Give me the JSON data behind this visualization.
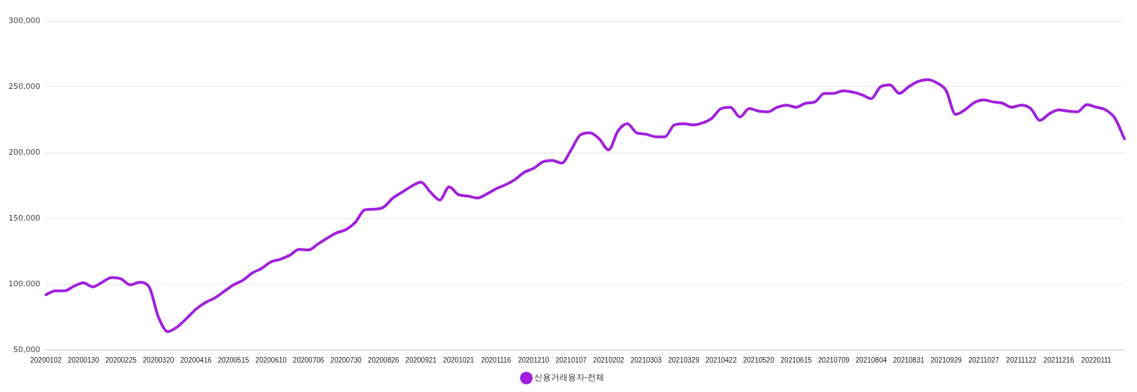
{
  "chart_data": {
    "type": "line",
    "categories": [
      "20200102",
      null,
      null,
      null,
      "20200130",
      null,
      null,
      null,
      "20200225",
      null,
      null,
      null,
      "20200320",
      null,
      null,
      null,
      "20200416",
      null,
      null,
      null,
      "20200515",
      null,
      null,
      null,
      "20200610",
      null,
      null,
      null,
      "20200706",
      null,
      null,
      null,
      "20200730",
      null,
      null,
      null,
      "20200826",
      null,
      null,
      null,
      "20200921",
      null,
      null,
      null,
      "20201021",
      null,
      null,
      null,
      "20201116",
      null,
      null,
      null,
      "20201210",
      null,
      null,
      null,
      "20210107",
      null,
      null,
      null,
      "20210202",
      null,
      null,
      null,
      "20210303",
      null,
      null,
      null,
      "20210329",
      null,
      null,
      null,
      "20210422",
      null,
      null,
      null,
      "20210520",
      null,
      null,
      null,
      "20210615",
      null,
      null,
      null,
      "20210709",
      null,
      null,
      null,
      "20210804",
      null,
      null,
      null,
      "20210831",
      null,
      null,
      null,
      "20210929",
      null,
      null,
      null,
      "20211027",
      null,
      null,
      null,
      "20211122",
      null,
      null,
      null,
      "20211216",
      null,
      null,
      null,
      "20220111",
      null,
      null,
      null
    ],
    "series": [
      {
        "name": "신용거래융자-전체",
        "color": "#a020dc",
        "values": [
          92000,
          95000,
          95000,
          98500,
          101000,
          98000,
          101500,
          105000,
          104000,
          99500,
          101500,
          98000,
          75000,
          64000,
          67500,
          74000,
          81000,
          86000,
          89500,
          94500,
          99500,
          103000,
          108500,
          112000,
          117000,
          119000,
          122000,
          126500,
          126000,
          130500,
          135000,
          139000,
          141500,
          147000,
          156500,
          157000,
          158500,
          165500,
          170000,
          174500,
          177500,
          170000,
          164000,
          174000,
          168000,
          167000,
          165500,
          168500,
          172500,
          175500,
          179500,
          185000,
          188000,
          193000,
          194000,
          192000,
          202000,
          213500,
          215000,
          210500,
          202000,
          216500,
          222000,
          215000,
          214000,
          212000,
          212000,
          221000,
          222000,
          221000,
          222500,
          226000,
          233500,
          234500,
          227000,
          233500,
          231500,
          231000,
          234500,
          236000,
          234500,
          237500,
          238500,
          245000,
          245000,
          247000,
          246000,
          244000,
          241000,
          250000,
          251500,
          245000,
          250000,
          254000,
          255500,
          253000,
          247000,
          229000,
          232500,
          238000,
          240000,
          238500,
          237500,
          234500,
          236000,
          233500,
          224500,
          229500,
          232500,
          231500,
          231000,
          236500,
          234500,
          232500,
          226000,
          210500
        ]
      }
    ],
    "ylim": [
      50000,
      300000
    ],
    "yticks": [
      {
        "value": 50000,
        "label": "50,000"
      },
      {
        "value": 100000,
        "label": "100,000"
      },
      {
        "value": 150000,
        "label": "150,000"
      },
      {
        "value": 200000,
        "label": "200,000"
      },
      {
        "value": 250000,
        "label": "250,000"
      },
      {
        "value": 300000,
        "label": "300,000"
      }
    ],
    "grid": "y",
    "legend": "bottom",
    "marker": "none",
    "line_style": "solid"
  }
}
